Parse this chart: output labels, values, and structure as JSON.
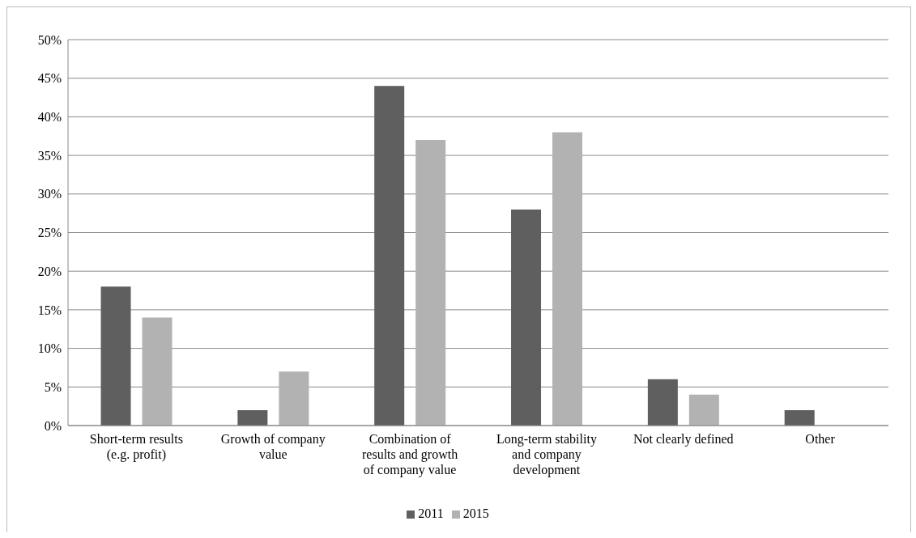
{
  "chart_data": {
    "type": "bar",
    "categories": [
      "Short-term results (e.g. profit)",
      "Growth of company value",
      "Combination of results and growth of company value",
      "Long-term stability and company development",
      "Not clearly defined",
      "Other"
    ],
    "series": [
      {
        "name": "2011",
        "color": "#5f5f5f",
        "values": [
          18,
          2,
          44,
          28,
          6,
          2
        ]
      },
      {
        "name": "2015",
        "color": "#b2b2b2",
        "values": [
          14,
          7,
          37,
          38,
          4,
          0
        ]
      }
    ],
    "ylim": [
      0,
      50
    ],
    "yticks": [
      {
        "value": 0,
        "label": "0%"
      },
      {
        "value": 5,
        "label": "5%"
      },
      {
        "value": 10,
        "label": "10%"
      },
      {
        "value": 15,
        "label": "15%"
      },
      {
        "value": 20,
        "label": "20%"
      },
      {
        "value": 25,
        "label": "25%"
      },
      {
        "value": 30,
        "label": "30%"
      },
      {
        "value": 35,
        "label": "35%"
      },
      {
        "value": 40,
        "label": "40%"
      },
      {
        "value": 45,
        "label": "45%"
      },
      {
        "value": 50,
        "label": "50%"
      }
    ],
    "grid": "y",
    "legend": "bottom"
  }
}
